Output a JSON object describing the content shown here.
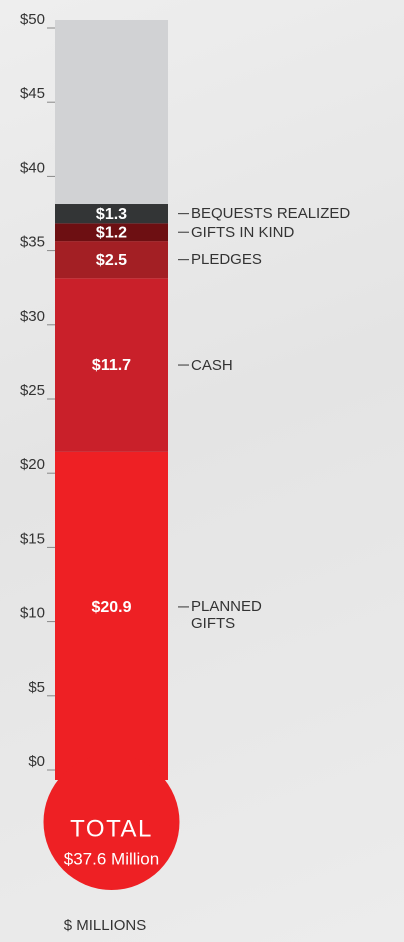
{
  "chart_data": {
    "type": "thermometer",
    "series": [
      {
        "name": "PLANNED GIFTS",
        "color": "#ee2024",
        "values": [
          20.9
        ],
        "value_labels": [
          "$20.9"
        ]
      },
      {
        "name": "CASH",
        "color": "#c9202a",
        "values": [
          11.7
        ],
        "value_labels": [
          "$11.7"
        ]
      },
      {
        "name": "PLEDGES",
        "color": "#a31f24",
        "values": [
          2.5
        ],
        "value_labels": [
          "$2.5"
        ]
      },
      {
        "name": "GIFTS IN KIND",
        "color": "#6d0f12",
        "values": [
          1.2
        ],
        "value_labels": [
          "$1.2"
        ]
      },
      {
        "name": "BEQUESTS REALIZED",
        "color": "#333536",
        "values": [
          1.3
        ],
        "value_labels": [
          "$1.3"
        ]
      }
    ],
    "ylim": [
      0,
      50
    ],
    "yticks": [
      {
        "value": 0,
        "label": "$0"
      },
      {
        "value": 5,
        "label": "$5"
      },
      {
        "value": 10,
        "label": "$10"
      },
      {
        "value": 15,
        "label": "$15"
      },
      {
        "value": 20,
        "label": "$20"
      },
      {
        "value": 25,
        "label": "$25"
      },
      {
        "value": 30,
        "label": "$30"
      },
      {
        "value": 35,
        "label": "$35"
      },
      {
        "value": 40,
        "label": "$40"
      },
      {
        "value": 45,
        "label": "$45"
      },
      {
        "value": 50,
        "label": "$50"
      }
    ],
    "track_color": "#d1d2d4",
    "total_title": "TOTAL",
    "total": 37.6,
    "total_label": "$37.6 Million",
    "y_label": "$ MILLIONS"
  }
}
